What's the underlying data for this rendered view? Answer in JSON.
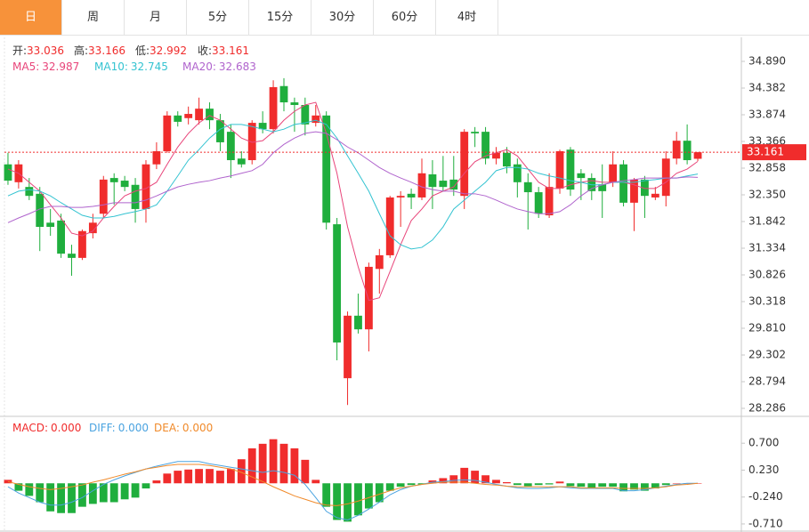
{
  "tabs": {
    "items": [
      "日",
      "周",
      "月",
      "5分",
      "15分",
      "30分",
      "60分",
      "4时"
    ],
    "active": 0
  },
  "chart_data": [
    {
      "type": "candlestick",
      "up_color": "#f02c2c",
      "down_color": "#1fae3d",
      "ohlc": [
        {
          "label": "开:",
          "value": 33.036
        },
        {
          "label": "高:",
          "value": 33.166
        },
        {
          "label": "低:",
          "value": 32.992
        },
        {
          "label": "收:",
          "value": 33.161
        }
      ],
      "open": [
        32.93,
        32.59,
        32.5,
        32.37,
        31.82,
        31.86,
        31.23,
        31.15,
        31.62,
        31.99,
        32.67,
        32.62,
        32.54,
        32.08,
        32.93,
        33.18,
        33.86,
        33.81,
        33.77,
        33.99,
        33.77,
        33.55,
        33.04,
        33.01,
        33.72,
        33.6,
        34.42,
        34.11,
        34.06,
        33.72,
        33.86,
        31.79,
        28.86,
        30.05,
        29.79,
        30.94,
        31.2,
        32.3,
        32.37,
        32.3,
        32.74,
        32.62,
        32.64,
        32.33,
        33.55,
        33.55,
        33.04,
        33.15,
        32.93,
        32.59,
        32.4,
        31.96,
        32.47,
        33.21,
        32.76,
        32.67,
        32.55,
        32.59,
        32.93,
        32.2,
        32.64,
        32.3,
        32.33,
        33.04,
        33.38,
        33.036
      ],
      "high": [
        33.15,
        33.01,
        32.67,
        32.5,
        32.08,
        31.99,
        31.4,
        31.69,
        31.99,
        32.71,
        32.76,
        32.71,
        32.67,
        33.01,
        33.35,
        33.94,
        33.94,
        34.03,
        34.2,
        34.11,
        33.89,
        33.69,
        33.18,
        33.77,
        33.94,
        34.53,
        34.57,
        34.2,
        34.2,
        34.06,
        33.94,
        31.91,
        30.13,
        30.47,
        31.06,
        31.32,
        32.33,
        32.42,
        32.47,
        33.04,
        33.01,
        33.09,
        33.09,
        33.6,
        33.64,
        33.64,
        33.26,
        33.26,
        33.04,
        32.76,
        32.5,
        32.76,
        33.21,
        33.26,
        32.84,
        32.76,
        32.93,
        33.18,
        33.01,
        32.67,
        32.71,
        32.5,
        33.18,
        33.55,
        33.69,
        33.166
      ],
      "low": [
        32.54,
        32.47,
        32.25,
        31.28,
        31.57,
        31.15,
        30.81,
        31.11,
        31.52,
        31.91,
        32.16,
        32.42,
        31.82,
        31.82,
        32.84,
        33.15,
        33.65,
        33.69,
        33.69,
        33.6,
        33.18,
        32.67,
        32.87,
        32.93,
        33.52,
        33.52,
        33.94,
        33.55,
        33.48,
        33.65,
        31.69,
        29.2,
        28.35,
        29.71,
        29.37,
        30.47,
        31.15,
        31.74,
        32.08,
        32.25,
        32.08,
        32.42,
        32.33,
        32.08,
        33.26,
        32.93,
        32.93,
        32.76,
        32.3,
        31.69,
        31.91,
        31.91,
        32.37,
        32.33,
        32.25,
        32.25,
        31.91,
        32.5,
        32.13,
        31.66,
        31.91,
        32.25,
        32.13,
        32.93,
        32.93,
        32.992
      ],
      "close": [
        32.62,
        32.93,
        32.33,
        31.74,
        31.74,
        31.23,
        31.15,
        31.66,
        31.82,
        32.64,
        32.59,
        32.5,
        32.08,
        32.93,
        33.18,
        33.86,
        33.74,
        33.89,
        33.99,
        33.77,
        33.35,
        33.01,
        32.93,
        33.72,
        33.6,
        34.4,
        34.11,
        34.06,
        33.69,
        33.86,
        31.82,
        29.54,
        30.05,
        29.79,
        30.98,
        31.2,
        32.3,
        32.33,
        32.3,
        32.76,
        32.5,
        32.5,
        32.45,
        33.55,
        33.52,
        33.04,
        33.15,
        32.89,
        32.59,
        32.4,
        31.99,
        32.5,
        33.18,
        32.45,
        32.67,
        32.42,
        32.42,
        32.93,
        32.2,
        32.64,
        32.33,
        32.37,
        33.04,
        33.38,
        33.01,
        33.161
      ],
      "series": [
        {
          "name": "MA5:",
          "legend_value": 32.987,
          "color": "#e8457a",
          "values": [
            32.84,
            32.76,
            32.59,
            32.42,
            32.16,
            31.91,
            31.62,
            31.57,
            31.66,
            31.91,
            32.13,
            32.33,
            32.42,
            32.47,
            32.59,
            32.93,
            33.26,
            33.52,
            33.72,
            33.86,
            33.77,
            33.6,
            33.43,
            33.35,
            33.38,
            33.55,
            33.77,
            33.94,
            34.06,
            34.11,
            33.52,
            32.76,
            31.74,
            30.98,
            30.34,
            30.39,
            30.89,
            31.4,
            31.86,
            32.08,
            32.33,
            32.42,
            32.5,
            32.76,
            32.98,
            33.09,
            33.15,
            33.21,
            33.09,
            32.84,
            32.59,
            32.47,
            32.47,
            32.54,
            32.59,
            32.62,
            32.59,
            32.59,
            32.59,
            32.54,
            32.47,
            32.47,
            32.59,
            32.76,
            32.84,
            32.987
          ]
        },
        {
          "name": "MA10:",
          "legend_value": 32.745,
          "color": "#33c3d1",
          "values": [
            32.33,
            32.42,
            32.45,
            32.42,
            32.33,
            32.2,
            32.08,
            31.96,
            31.91,
            31.91,
            31.94,
            31.99,
            32.03,
            32.08,
            32.16,
            32.42,
            32.71,
            33.01,
            33.21,
            33.43,
            33.6,
            33.69,
            33.69,
            33.65,
            33.6,
            33.55,
            33.6,
            33.69,
            33.72,
            33.77,
            33.69,
            33.43,
            33.09,
            32.76,
            32.42,
            31.99,
            31.57,
            31.4,
            31.32,
            31.35,
            31.49,
            31.74,
            32.08,
            32.25,
            32.42,
            32.59,
            32.81,
            32.87,
            32.87,
            32.84,
            32.76,
            32.71,
            32.67,
            32.62,
            32.59,
            32.54,
            32.54,
            32.59,
            32.59,
            32.59,
            32.62,
            32.64,
            32.67,
            32.67,
            32.71,
            32.745
          ]
        },
        {
          "name": "MA20:",
          "legend_value": 32.683,
          "color": "#b064cd",
          "values": [
            31.82,
            31.91,
            31.99,
            32.08,
            32.13,
            32.13,
            32.11,
            32.11,
            32.13,
            32.16,
            32.2,
            32.2,
            32.2,
            32.25,
            32.33,
            32.42,
            32.5,
            32.55,
            32.59,
            32.62,
            32.67,
            32.71,
            32.76,
            32.81,
            32.93,
            33.15,
            33.31,
            33.43,
            33.52,
            33.55,
            33.52,
            33.4,
            33.26,
            33.15,
            33.01,
            32.87,
            32.76,
            32.67,
            32.59,
            32.5,
            32.45,
            32.42,
            32.42,
            32.37,
            32.37,
            32.33,
            32.25,
            32.16,
            32.08,
            32.03,
            31.99,
            31.99,
            32.03,
            32.16,
            32.33,
            32.47,
            32.54,
            32.59,
            32.62,
            32.64,
            32.67,
            32.67,
            32.67,
            32.67,
            32.69,
            32.683
          ]
        }
      ],
      "ylim": [
        28.134,
        35.347
      ],
      "yticks": [
        28.286,
        28.794,
        29.302,
        {
          "value": 29.81,
          "label": "29.810"
        },
        30.318,
        30.826,
        31.334,
        31.842,
        {
          "value": 32.35,
          "label": "32.350"
        },
        32.858,
        33.366,
        33.874,
        34.382,
        {
          "value": 34.89,
          "label": "34.890"
        }
      ]
    },
    {
      "type": "macd",
      "up_color": "#f02c2c",
      "down_color": "#1fae3d",
      "series": [
        {
          "name": "MACD:",
          "legend_value": 0,
          "legend_value_label": "0.000",
          "color": "#f02c2c",
          "kind": "bar",
          "values": [
            0.06,
            -0.13,
            -0.22,
            -0.33,
            -0.49,
            -0.52,
            -0.52,
            -0.41,
            -0.36,
            -0.33,
            -0.33,
            -0.28,
            -0.25,
            -0.09,
            0.05,
            0.17,
            0.22,
            0.24,
            0.25,
            0.25,
            0.22,
            0.25,
            0.42,
            0.61,
            0.69,
            0.77,
            0.69,
            0.61,
            0.41,
            0.06,
            -0.41,
            -0.64,
            -0.67,
            -0.56,
            -0.44,
            -0.33,
            -0.13,
            -0.06,
            -0.03,
            -0.02,
            0.05,
            0.09,
            0.14,
            0.27,
            0.22,
            0.14,
            0.06,
            0.02,
            -0.03,
            -0.05,
            -0.03,
            -0.02,
            0.03,
            -0.05,
            -0.06,
            -0.08,
            -0.06,
            -0.06,
            -0.14,
            -0.11,
            -0.13,
            -0.09,
            -0.03,
            0,
            0,
            0
          ]
        },
        {
          "name": "DIFF:",
          "legend_value": 0,
          "legend_value_label": "0.000",
          "color": "#4aa3e0",
          "kind": "line",
          "values": [
            -0.06,
            -0.17,
            -0.25,
            -0.33,
            -0.38,
            -0.38,
            -0.33,
            -0.25,
            -0.13,
            -0.02,
            0.06,
            0.13,
            0.19,
            0.25,
            0.3,
            0.34,
            0.38,
            0.38,
            0.38,
            0.34,
            0.31,
            0.28,
            0.25,
            0.22,
            0.19,
            0.22,
            0.19,
            0.14,
            -0.02,
            -0.25,
            -0.49,
            -0.6,
            -0.64,
            -0.56,
            -0.45,
            -0.33,
            -0.2,
            -0.11,
            -0.05,
            -0.02,
            0.02,
            0.03,
            0.05,
            0.06,
            0.05,
            0.02,
            -0.02,
            -0.05,
            -0.08,
            -0.09,
            -0.09,
            -0.08,
            -0.06,
            -0.08,
            -0.09,
            -0.09,
            -0.09,
            -0.09,
            -0.13,
            -0.13,
            -0.11,
            -0.08,
            -0.05,
            -0.02,
            0,
            0
          ]
        },
        {
          "name": "DEA:",
          "legend_value": 0,
          "legend_value_label": "0.000",
          "color": "#f08a2a",
          "kind": "line",
          "values": [
            0.03,
            -0.02,
            -0.06,
            -0.09,
            -0.11,
            -0.09,
            -0.06,
            -0.03,
            0.02,
            0.06,
            0.11,
            0.16,
            0.2,
            0.25,
            0.28,
            0.31,
            0.33,
            0.33,
            0.33,
            0.31,
            0.28,
            0.25,
            0.19,
            0.11,
            0.03,
            -0.06,
            -0.14,
            -0.22,
            -0.28,
            -0.34,
            -0.38,
            -0.39,
            -0.36,
            -0.31,
            -0.25,
            -0.19,
            -0.13,
            -0.08,
            -0.05,
            -0.02,
            0,
            0.02,
            0.02,
            0.02,
            0,
            -0.02,
            -0.03,
            -0.05,
            -0.06,
            -0.06,
            -0.06,
            -0.06,
            -0.06,
            -0.06,
            -0.08,
            -0.08,
            -0.08,
            -0.08,
            -0.09,
            -0.09,
            -0.09,
            -0.08,
            -0.06,
            -0.03,
            -0.02,
            0
          ]
        }
      ],
      "ylim": [
        -0.835,
        1.076
      ],
      "yticks": [
        {
          "value": 0.7,
          "label": "0.700"
        },
        {
          "value": 0.23,
          "label": "0.230"
        },
        {
          "value": -0.24,
          "label": "-0.240"
        },
        {
          "value": -0.71,
          "label": "-0.710"
        }
      ]
    }
  ]
}
